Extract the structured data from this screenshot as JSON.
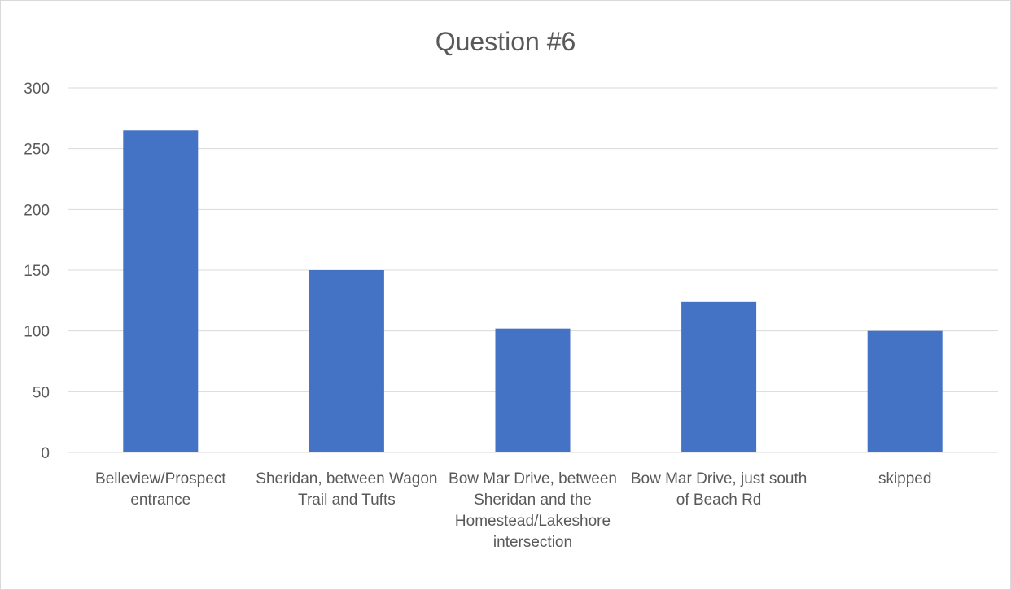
{
  "chart_data": {
    "type": "bar",
    "title": "Question #6",
    "xlabel": "",
    "ylabel": "",
    "categories": [
      "Belleview/Prospect entrance",
      "Sheridan, between Wagon Trail and Tufts",
      "Bow Mar Drive, between Sheridan and the Homestead/Lakeshore intersection",
      "Bow Mar Drive, just south of Beach Rd",
      "skipped"
    ],
    "values": [
      265,
      150,
      102,
      124,
      100
    ],
    "ylim": [
      0,
      300
    ],
    "yticks": [
      0,
      50,
      100,
      150,
      200,
      250,
      300
    ],
    "grid": true,
    "legend": "none",
    "bar_color": "#4472c4"
  }
}
